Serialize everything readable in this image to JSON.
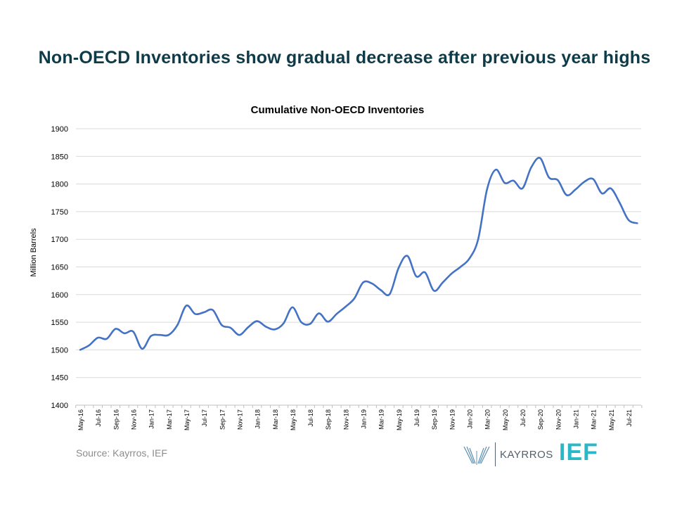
{
  "headline": "Non-OECD Inventories show gradual decrease after previous year highs",
  "source": "Source: Kayrros, IEF",
  "logos": {
    "kayrros": "KAYRROS",
    "ief": "IEF"
  },
  "colors": {
    "headline": "#0e3b47",
    "line": "#4472c4",
    "ief": "#29b8c8",
    "grid": "#d9d9d9"
  },
  "chart_data": {
    "type": "line",
    "title": "Cumulative Non-OECD Inventories",
    "ylabel": "Million Barrels",
    "xlabel": "",
    "ylim": [
      1400,
      1900
    ],
    "yticks": [
      1400,
      1450,
      1500,
      1550,
      1600,
      1650,
      1700,
      1750,
      1800,
      1850,
      1900
    ],
    "grid": true,
    "legend": "none",
    "x_tick_labels": [
      "May-16",
      "Jul-16",
      "Sep-16",
      "Nov-16",
      "Jan-17",
      "Mar-17",
      "May-17",
      "Jul-17",
      "Sep-17",
      "Nov-17",
      "Jan-18",
      "Mar-18",
      "May-18",
      "Jul-18",
      "Sep-18",
      "Nov-18",
      "Jan-19",
      "Mar-19",
      "May-19",
      "Jul-19",
      "Sep-19",
      "Nov-19",
      "Jan-20",
      "Mar-20",
      "May-20",
      "Jul-20",
      "Sep-20",
      "Nov-20",
      "Jan-21",
      "Mar-21",
      "May-21",
      "Jul-21"
    ],
    "x": [
      "May-16",
      "Jun-16",
      "Jul-16",
      "Aug-16",
      "Sep-16",
      "Oct-16",
      "Nov-16",
      "Dec-16",
      "Jan-17",
      "Feb-17",
      "Mar-17",
      "Apr-17",
      "May-17",
      "Jun-17",
      "Jul-17",
      "Aug-17",
      "Sep-17",
      "Oct-17",
      "Nov-17",
      "Dec-17",
      "Jan-18",
      "Feb-18",
      "Mar-18",
      "Apr-18",
      "May-18",
      "Jun-18",
      "Jul-18",
      "Aug-18",
      "Sep-18",
      "Oct-18",
      "Nov-18",
      "Dec-18",
      "Jan-19",
      "Feb-19",
      "Mar-19",
      "Apr-19",
      "May-19",
      "Jun-19",
      "Jul-19",
      "Aug-19",
      "Sep-19",
      "Oct-19",
      "Nov-19",
      "Dec-19",
      "Jan-20",
      "Feb-20",
      "Mar-20",
      "Apr-20",
      "May-20",
      "Jun-20",
      "Jul-20",
      "Aug-20",
      "Sep-20",
      "Oct-20",
      "Nov-20",
      "Dec-20",
      "Jan-21",
      "Feb-21",
      "Mar-21",
      "Apr-21",
      "May-21",
      "Jun-21",
      "Jul-21",
      "Aug-21"
    ],
    "series": [
      {
        "values": [
          1500,
          1508,
          1522,
          1520,
          1538,
          1530,
          1533,
          1502,
          1525,
          1527,
          1527,
          1545,
          1580,
          1565,
          1568,
          1572,
          1545,
          1540,
          1527,
          1541,
          1552,
          1542,
          1537,
          1548,
          1577,
          1550,
          1547,
          1566,
          1551,
          1565,
          1578,
          1593,
          1622,
          1620,
          1608,
          1601,
          1648,
          1670,
          1633,
          1640,
          1607,
          1622,
          1638,
          1650,
          1665,
          1700,
          1790,
          1826,
          1802,
          1806,
          1792,
          1830,
          1847,
          1812,
          1807,
          1780,
          1790,
          1804,
          1809,
          1783,
          1792,
          1766,
          1735,
          1729
        ]
      }
    ]
  }
}
